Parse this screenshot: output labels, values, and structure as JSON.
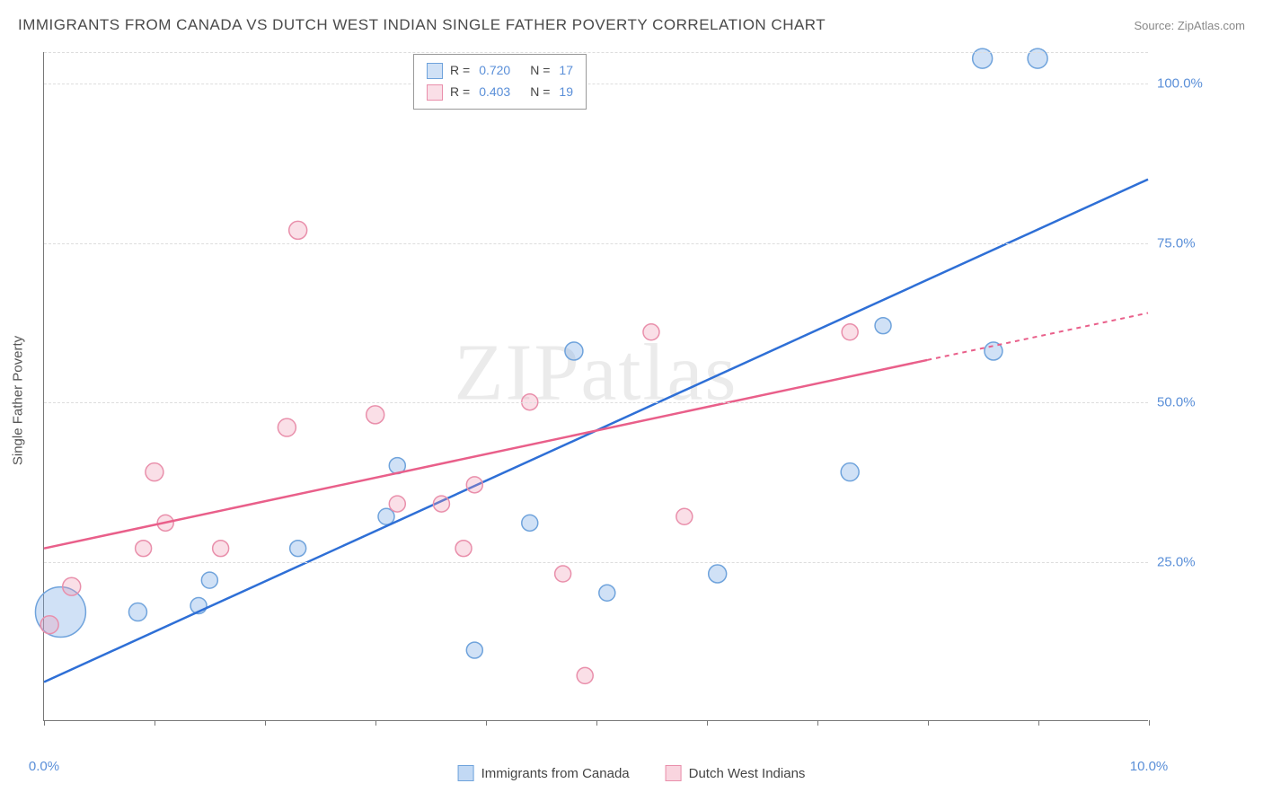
{
  "header": {
    "title": "IMMIGRANTS FROM CANADA VS DUTCH WEST INDIAN SINGLE FATHER POVERTY CORRELATION CHART",
    "source": "Source: ZipAtlas.com"
  },
  "watermark": {
    "left": "ZIP",
    "right": "atlas"
  },
  "chart": {
    "type": "scatter-with-regression",
    "background_color": "#ffffff",
    "grid_color": "#dddddd",
    "axis_color": "#777777",
    "tick_label_color": "#5a8fd8",
    "axis_title_color": "#555555",
    "label_fontsize": 15,
    "title_fontsize": 17,
    "xlim": [
      0,
      10
    ],
    "ylim": [
      0,
      105
    ],
    "x_ticks": [
      0,
      1,
      2,
      3,
      4,
      5,
      6,
      7,
      8,
      9,
      10
    ],
    "x_tick_labels": {
      "0": "0.0%",
      "10": "10.0%"
    },
    "y_gridlines": [
      25,
      50,
      75,
      100,
      105
    ],
    "y_tick_labels": {
      "25": "25.0%",
      "50": "50.0%",
      "75": "75.0%",
      "100": "100.0%"
    },
    "y_axis_title": "Single Father Poverty",
    "series": [
      {
        "name": "Immigrants from Canada",
        "color_fill": "rgba(120,170,230,0.35)",
        "color_stroke": "#6fa3dc",
        "line_color": "#2e6fd6",
        "r_value": "0.720",
        "n_value": "17",
        "points": [
          {
            "x": 0.15,
            "y": 17,
            "r": 28
          },
          {
            "x": 0.85,
            "y": 17,
            "r": 10
          },
          {
            "x": 1.4,
            "y": 18,
            "r": 9
          },
          {
            "x": 1.5,
            "y": 22,
            "r": 9
          },
          {
            "x": 2.3,
            "y": 27,
            "r": 9
          },
          {
            "x": 3.1,
            "y": 32,
            "r": 9
          },
          {
            "x": 3.2,
            "y": 40,
            "r": 9
          },
          {
            "x": 3.9,
            "y": 11,
            "r": 9
          },
          {
            "x": 4.4,
            "y": 31,
            "r": 9
          },
          {
            "x": 4.8,
            "y": 58,
            "r": 10
          },
          {
            "x": 5.1,
            "y": 20,
            "r": 9
          },
          {
            "x": 6.1,
            "y": 23,
            "r": 10
          },
          {
            "x": 7.3,
            "y": 39,
            "r": 10
          },
          {
            "x": 7.6,
            "y": 62,
            "r": 9
          },
          {
            "x": 8.6,
            "y": 58,
            "r": 10
          },
          {
            "x": 8.5,
            "y": 104,
            "r": 11
          },
          {
            "x": 9.0,
            "y": 104,
            "r": 11
          }
        ],
        "regression": {
          "x1": 0,
          "y1": 6,
          "x2": 10,
          "y2": 85,
          "solid_end_x": 10
        }
      },
      {
        "name": "Dutch West Indians",
        "color_fill": "rgba(240,150,175,0.3)",
        "color_stroke": "#e98fab",
        "line_color": "#e95f8a",
        "r_value": "0.403",
        "n_value": "19",
        "points": [
          {
            "x": 0.05,
            "y": 15,
            "r": 10
          },
          {
            "x": 0.25,
            "y": 21,
            "r": 10
          },
          {
            "x": 0.9,
            "y": 27,
            "r": 9
          },
          {
            "x": 1.0,
            "y": 39,
            "r": 10
          },
          {
            "x": 1.1,
            "y": 31,
            "r": 9
          },
          {
            "x": 1.6,
            "y": 27,
            "r": 9
          },
          {
            "x": 2.3,
            "y": 77,
            "r": 10
          },
          {
            "x": 2.2,
            "y": 46,
            "r": 10
          },
          {
            "x": 3.0,
            "y": 48,
            "r": 10
          },
          {
            "x": 3.2,
            "y": 34,
            "r": 9
          },
          {
            "x": 3.6,
            "y": 34,
            "r": 9
          },
          {
            "x": 3.8,
            "y": 27,
            "r": 9
          },
          {
            "x": 3.9,
            "y": 37,
            "r": 9
          },
          {
            "x": 4.4,
            "y": 50,
            "r": 9
          },
          {
            "x": 4.7,
            "y": 23,
            "r": 9
          },
          {
            "x": 4.9,
            "y": 7,
            "r": 9
          },
          {
            "x": 5.5,
            "y": 61,
            "r": 9
          },
          {
            "x": 5.8,
            "y": 32,
            "r": 9
          },
          {
            "x": 7.3,
            "y": 61,
            "r": 9
          }
        ],
        "regression": {
          "x1": 0,
          "y1": 27,
          "x2": 10,
          "y2": 64,
          "solid_end_x": 8
        }
      }
    ],
    "legend_top": {
      "r_label": "R =",
      "n_label": "N ="
    },
    "legend_bottom": [
      {
        "label": "Immigrants from Canada",
        "fill": "rgba(120,170,230,0.45)",
        "stroke": "#6fa3dc"
      },
      {
        "label": "Dutch West Indians",
        "fill": "rgba(240,150,175,0.4)",
        "stroke": "#e98fab"
      }
    ]
  }
}
